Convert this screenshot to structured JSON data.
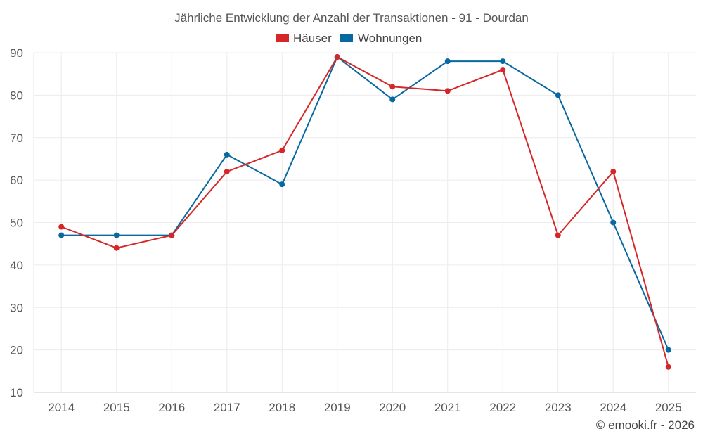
{
  "chart_data": {
    "type": "line",
    "title": "Jährliche Entwicklung der Anzahl der Transaktionen - 91 - Dourdan",
    "xlabel": "",
    "ylabel": "",
    "categories": [
      "2014",
      "2015",
      "2016",
      "2017",
      "2018",
      "2019",
      "2020",
      "2021",
      "2022",
      "2023",
      "2024",
      "2025"
    ],
    "ylim": [
      10,
      90
    ],
    "yticks": [
      10,
      20,
      30,
      40,
      50,
      60,
      70,
      80,
      90
    ],
    "grid": true,
    "legend_position": "top-center",
    "series": [
      {
        "name": "Häuser",
        "color": "#d62728",
        "values": [
          49,
          44,
          47,
          62,
          67,
          89,
          82,
          81,
          86,
          47,
          62,
          16
        ]
      },
      {
        "name": "Wohnungen",
        "color": "#0868a0",
        "values": [
          47,
          47,
          47,
          66,
          59,
          89,
          79,
          88,
          88,
          80,
          50,
          20
        ]
      }
    ],
    "credit": "© emooki.fr - 2026"
  }
}
